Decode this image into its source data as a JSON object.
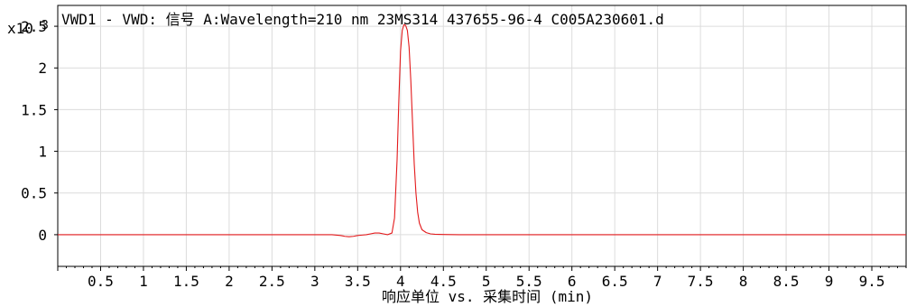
{
  "chart_data": {
    "type": "line",
    "title": "VWD1 - VWD: 信号 A:Wavelength=210 nm 23MS314 437655-96-4 C005A230601.d",
    "xlabel": "响应单位 vs. 采集时间 (min)",
    "ylabel": "",
    "y_multiplier_label": "x10",
    "y_multiplier_exponent": "3",
    "xlim": [
      0.0,
      9.9
    ],
    "ylim": [
      -0.38,
      2.75
    ],
    "x_ticks": [
      0.5,
      1,
      1.5,
      2,
      2.5,
      3,
      3.5,
      4,
      4.5,
      5,
      5.5,
      6,
      6.5,
      7,
      7.5,
      8,
      8.5,
      9,
      9.5
    ],
    "x_tick_labels": [
      "0.5",
      "1",
      "1.5",
      "2",
      "2.5",
      "3",
      "3.5",
      "4",
      "4.5",
      "5",
      "5.5",
      "6",
      "6.5",
      "7",
      "7.5",
      "8",
      "8.5",
      "9",
      "9.5"
    ],
    "y_ticks": [
      0,
      0.5,
      1,
      1.5,
      2,
      2.5
    ],
    "y_tick_labels": [
      "0",
      "0.5",
      "1",
      "1.5",
      "2",
      "2.5"
    ],
    "grid": true,
    "series": [
      {
        "color": "#e31a1c",
        "x": [
          0.0,
          3.0,
          3.2,
          3.3,
          3.35,
          3.4,
          3.45,
          3.5,
          3.55,
          3.6,
          3.65,
          3.7,
          3.75,
          3.8,
          3.85,
          3.9,
          3.93,
          3.96,
          3.98,
          4.0,
          4.02,
          4.04,
          4.06,
          4.08,
          4.1,
          4.12,
          4.14,
          4.16,
          4.18,
          4.2,
          4.22,
          4.25,
          4.3,
          4.35,
          4.4,
          4.5,
          4.7,
          5.0,
          5.5,
          6.0,
          7.0,
          8.0,
          9.0,
          9.9
        ],
        "y": [
          0.0,
          0.0,
          0.0,
          -0.01,
          -0.02,
          -0.025,
          -0.02,
          -0.01,
          -0.005,
          0.0,
          0.01,
          0.02,
          0.02,
          0.01,
          0.0,
          0.02,
          0.2,
          0.9,
          1.6,
          2.2,
          2.45,
          2.52,
          2.51,
          2.45,
          2.25,
          1.85,
          1.35,
          0.85,
          0.5,
          0.27,
          0.14,
          0.06,
          0.025,
          0.01,
          0.005,
          0.002,
          0.0,
          0.0,
          0.0,
          0.0,
          0.0,
          0.0,
          0.0,
          0.0
        ]
      }
    ]
  }
}
